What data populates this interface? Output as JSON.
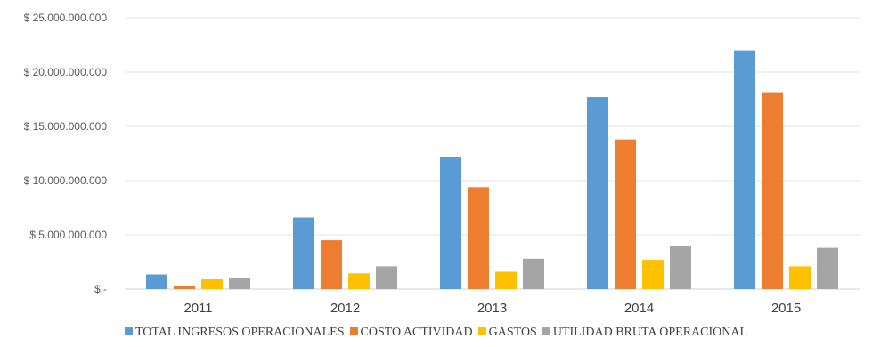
{
  "chart_data": {
    "type": "bar",
    "title": "",
    "xlabel": "",
    "ylabel": "",
    "categories": [
      "2011",
      "2012",
      "2013",
      "2014",
      "2015"
    ],
    "ylim": [
      0,
      25000000000
    ],
    "yticks": [
      0,
      5000000000,
      10000000000,
      15000000000,
      20000000000,
      25000000000
    ],
    "ytick_labels": [
      "$ -",
      "$ 5.000.000.000",
      "$ 10.000.000.000",
      "$ 15.000.000.000",
      "$ 20.000.000.000",
      "$ 25.000.000.000"
    ],
    "grid": "horizontal",
    "legend_position": "bottom",
    "series": [
      {
        "name": "TOTAL INGRESOS OPERACIONALES",
        "color": "#5B9BD5",
        "values": [
          1350000000,
          6600000000,
          12150000000,
          17700000000,
          22000000000
        ]
      },
      {
        "name": "COSTO ACTIVIDAD",
        "color": "#ED7D31",
        "values": [
          250000000,
          4500000000,
          9400000000,
          13800000000,
          18150000000
        ]
      },
      {
        "name": "GASTOS",
        "color": "#FFC000",
        "values": [
          900000000,
          1450000000,
          1600000000,
          2700000000,
          2100000000
        ]
      },
      {
        "name": "UTILIDAD BRUTA OPERACIONAL",
        "color": "#A5A5A5",
        "values": [
          1050000000,
          2100000000,
          2800000000,
          3950000000,
          3800000000
        ]
      }
    ]
  }
}
